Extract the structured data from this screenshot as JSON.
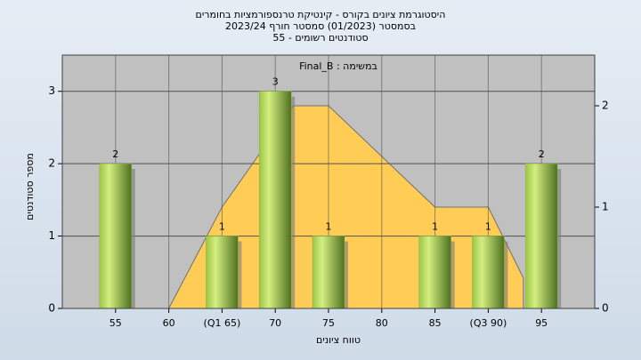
{
  "chart_data": {
    "type": "bar",
    "title": "היסטוגרמת ציונים בקורס - קינטיקת טרנספורמציות בחומרים",
    "subtitle": "בסמסטר  (01/2023)  סמסטר חורף 2023/24",
    "subtitle2": "סטודנטים רשומים - 55",
    "annotation": "במשימה : Final_B",
    "x_label": "טווח ציונים",
    "y_label": "מספר סטודנטים",
    "x": [
      55,
      60,
      65,
      70,
      75,
      80,
      85,
      90,
      95
    ],
    "values": [
      2,
      0,
      1,
      3,
      1,
      0,
      1,
      1,
      2
    ],
    "color": "#8db83a",
    "xlim": [
      50,
      100
    ],
    "xticks": [
      55,
      60,
      {
        "value": 65,
        "label": "(Q1 65)"
      },
      70,
      75,
      80,
      85,
      {
        "value": 90,
        "label": "(Q3 90)"
      },
      95
    ],
    "ylim": [
      0,
      3.5
    ],
    "yticks": [
      0,
      1,
      2,
      3
    ],
    "y2lim": [
      0,
      2.5
    ],
    "y2ticks": [
      0,
      1,
      2
    ],
    "area": {
      "x": [
        60,
        65,
        71.7,
        75,
        85,
        90,
        93.3
      ],
      "values": [
        0,
        1,
        2,
        2,
        1,
        1,
        0.3
      ],
      "color": "#ffcc55",
      "axis": "y2"
    },
    "grid": true
  }
}
